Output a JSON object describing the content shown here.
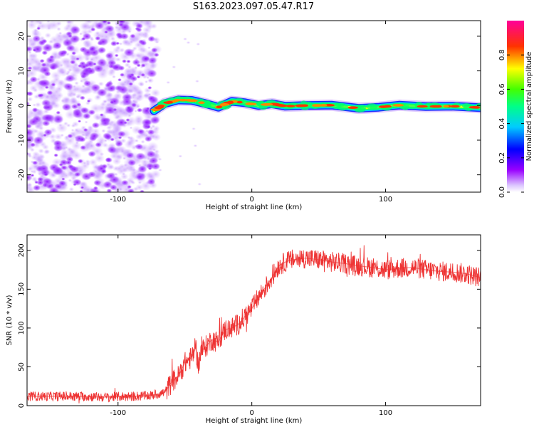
{
  "title": "S163.2023.097.05.47.R17",
  "chart_data": [
    {
      "type": "heatmap",
      "xlabel": "Height of straight line (km)",
      "ylabel": "Frequency (Hz)",
      "xlim": [
        -168,
        171
      ],
      "ylim": [
        -25,
        24.5
      ],
      "xticks": [
        -100,
        0,
        100
      ],
      "yticks": [
        -20,
        -10,
        0,
        10,
        20
      ],
      "grid": false,
      "noise_region_x": [
        -168,
        -73
      ],
      "trace_start_x": -73,
      "ridge": [
        {
          "x": -73,
          "y": -1.5
        },
        {
          "x": -65,
          "y": 0.6
        },
        {
          "x": -55,
          "y": 1.6
        },
        {
          "x": -45,
          "y": 1.5
        },
        {
          "x": -35,
          "y": 0.6
        },
        {
          "x": -25,
          "y": -0.5
        },
        {
          "x": -15,
          "y": 1.2
        },
        {
          "x": -5,
          "y": 0.8
        },
        {
          "x": 5,
          "y": 0.0
        },
        {
          "x": 15,
          "y": 0.5
        },
        {
          "x": 25,
          "y": -0.2
        },
        {
          "x": 40,
          "y": 0.0
        },
        {
          "x": 60,
          "y": 0.1
        },
        {
          "x": 80,
          "y": -0.8
        },
        {
          "x": 95,
          "y": -0.5
        },
        {
          "x": 110,
          "y": 0.1
        },
        {
          "x": 130,
          "y": -0.3
        },
        {
          "x": 150,
          "y": -0.2
        },
        {
          "x": 171,
          "y": -0.6
        }
      ],
      "colorbar": {
        "label": "Normalized spectral amplitude",
        "range": [
          0,
          1
        ],
        "ticks": [
          0.0,
          0.2,
          0.4,
          0.6,
          0.8
        ],
        "tick_labels": [
          "0.0",
          "0.2",
          "0.4",
          "0.6",
          "0.8"
        ],
        "colors": [
          "#ffffff",
          "#9900ff",
          "#0000ff",
          "#00ffff",
          "#00ff00",
          "#ffff00",
          "#ff0000",
          "#ff0099"
        ]
      }
    },
    {
      "type": "line",
      "xlabel": "Height of straight line (km)",
      "ylabel": "SNR (10 * v/v)",
      "xlim": [
        -168,
        171
      ],
      "ylim": [
        0,
        220
      ],
      "xticks": [
        -100,
        0,
        100
      ],
      "yticks": [
        0,
        50,
        100,
        150,
        200
      ],
      "grid": false,
      "color": "#ee3333",
      "series": [
        {
          "x": [
            -168,
            -150,
            -130,
            -110,
            -90,
            -75,
            -65,
            -60,
            -55,
            -50,
            -45,
            -42,
            -40,
            -38,
            -35,
            -30,
            -25,
            -20,
            -15,
            -10,
            -5,
            0,
            5,
            10,
            15,
            20,
            25,
            30,
            40,
            50,
            60,
            70,
            80,
            90,
            100,
            110,
            120,
            130,
            140,
            150,
            160,
            171
          ],
          "y": [
            12,
            12,
            12,
            11,
            12,
            13,
            17,
            30,
            38,
            55,
            62,
            75,
            52,
            70,
            75,
            85,
            82,
            98,
            100,
            105,
            115,
            125,
            140,
            152,
            165,
            180,
            185,
            188,
            190,
            188,
            185,
            183,
            180,
            178,
            175,
            177,
            178,
            175,
            173,
            172,
            170,
            165
          ]
        }
      ]
    }
  ]
}
